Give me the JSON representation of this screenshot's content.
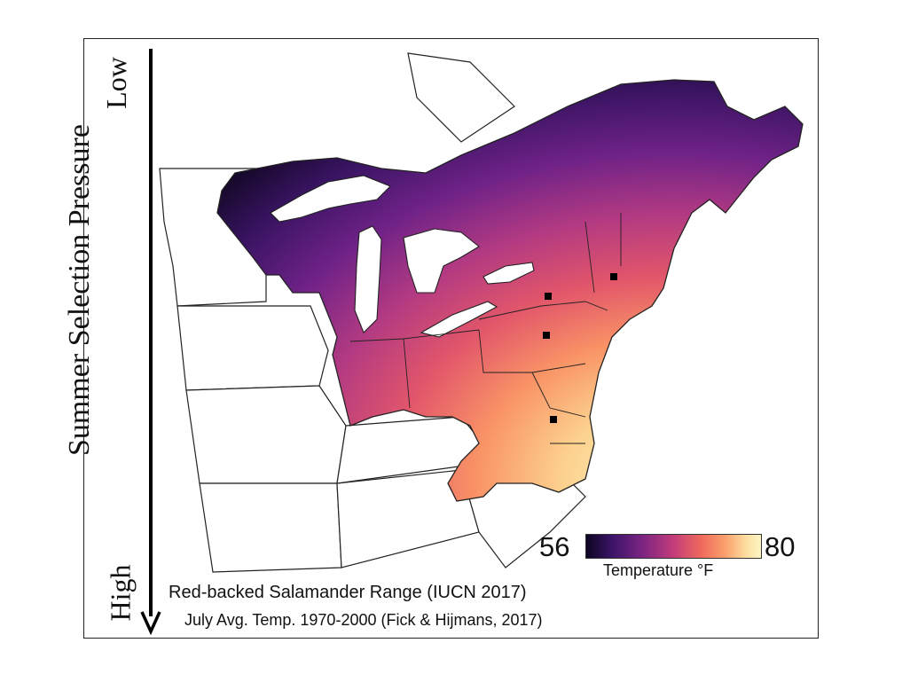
{
  "axis": {
    "title": "Summer Selection Pressure",
    "low_label": "Low",
    "high_label": "High"
  },
  "captions": {
    "line1": "Red-backed Salamander Range (IUCN 2017)",
    "line2": "July Avg. Temp. 1970-2000 (Fick & Hijmans, 2017)"
  },
  "legend": {
    "min": "56",
    "max": "80",
    "title": "Temperature °F",
    "colors": [
      "#0b0420",
      "#3b1467",
      "#7a2482",
      "#c33d7b",
      "#f06a5c",
      "#fba46f",
      "#fde2a4",
      "#fdf6c6"
    ]
  }
}
